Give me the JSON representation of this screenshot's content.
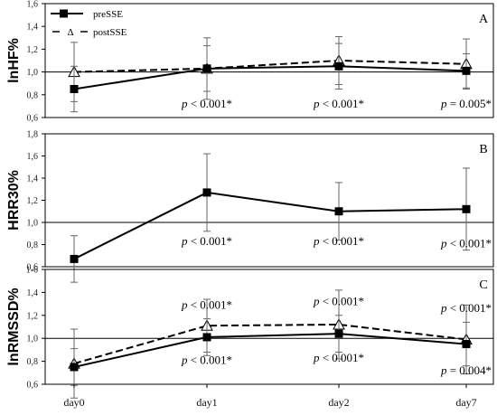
{
  "chart_data": {
    "type": "line",
    "categories": [
      "day0",
      "day1",
      "day2",
      "day7"
    ],
    "legend": {
      "placement": "top-left",
      "entries": [
        "preSSE",
        "postSSE"
      ],
      "post_symbol": "Δ"
    },
    "panels": [
      {
        "letter": "A",
        "ylabel": "lnHF%",
        "ylim": [
          0.6,
          1.6
        ],
        "yticks": [
          "0,6",
          "0,8",
          "1,0",
          "1,2",
          "1,4",
          "1,6"
        ],
        "reference_line": 1.0,
        "series": [
          {
            "name": "preSSE",
            "values": [
              0.85,
              1.03,
              1.05,
              1.01
            ],
            "errors": [
              0.2,
              0.2,
              0.2,
              0.15
            ]
          },
          {
            "name": "postSSE",
            "values": [
              1.0,
              1.03,
              1.1,
              1.07
            ],
            "errors": [
              0.26,
              0.27,
              0.21,
              0.22
            ]
          }
        ],
        "annotations": [
          {
            "text": "p < 0.001*",
            "category": "day1",
            "y": 0.72
          },
          {
            "text": "p < 0.001*",
            "category": "day2",
            "y": 0.72
          },
          {
            "text": "p = 0.005*",
            "category": "day7",
            "y": 0.72
          }
        ]
      },
      {
        "letter": "B",
        "ylabel": "HRR30%",
        "ylim": [
          0.6,
          1.8
        ],
        "yticks": [
          "0,6",
          "0,8",
          "1,0",
          "1,2",
          "1,4",
          "1,6",
          "1,8"
        ],
        "reference_line": 1.0,
        "series": [
          {
            "name": "preSSE",
            "values": [
              0.67,
              1.27,
              1.1,
              1.12
            ],
            "errors": [
              0.21,
              0.35,
              0.26,
              0.37
            ]
          }
        ],
        "annotations": [
          {
            "text": "p < 0.001*",
            "category": "day1",
            "y": 0.83
          },
          {
            "text": "p < 0.001*",
            "category": "day2",
            "y": 0.83
          },
          {
            "text": "p < 0.001*",
            "category": "day7",
            "y": 0.81
          }
        ]
      },
      {
        "letter": "C",
        "ylabel": "lnRMSSD%",
        "ylim": [
          0.6,
          1.6
        ],
        "yticks": [
          "0,6",
          "0,8",
          "1,0",
          "1,2",
          "1,4",
          "1-6"
        ],
        "reference_line": 1.0,
        "series": [
          {
            "name": "preSSE",
            "values": [
              0.75,
              1.01,
              1.04,
              0.95
            ],
            "errors": [
              0.16,
              0.16,
              0.16,
              0.19
            ]
          },
          {
            "name": "postSSE",
            "values": [
              0.78,
              1.11,
              1.12,
              0.99
            ],
            "errors": [
              0.3,
              0.23,
              0.3,
              0.3
            ]
          }
        ],
        "annotations": [
          {
            "text": "p < 0.001*",
            "category": "day1",
            "y": 1.29
          },
          {
            "text": "p < 0.001*",
            "category": "day2",
            "y": 1.32
          },
          {
            "text": "p < 0.001*",
            "category": "day7",
            "y": 1.26
          },
          {
            "text": "p < 0.001*",
            "category": "day1",
            "y": 0.81
          },
          {
            "text": "p < 0.001*",
            "category": "day2",
            "y": 0.83
          },
          {
            "text": "p = 0.004*",
            "category": "day7",
            "y": 0.72
          }
        ]
      }
    ]
  }
}
